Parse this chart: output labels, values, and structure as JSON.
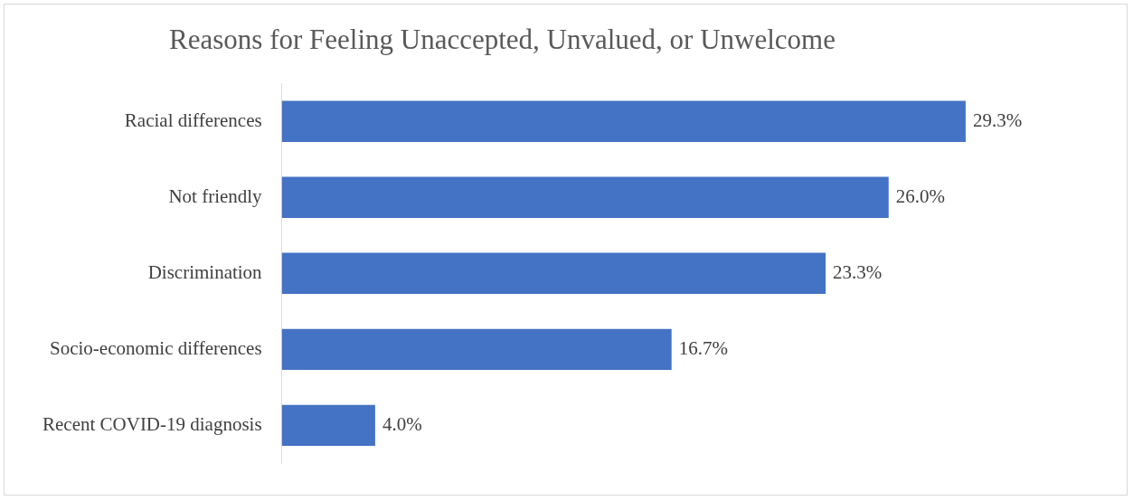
{
  "chart_data": {
    "type": "bar",
    "orientation": "horizontal",
    "title": "Reasons for Feeling Unaccepted, Unvalued, or Unwelcome",
    "categories": [
      "Racial differences",
      "Not friendly",
      "Discrimination",
      "Socio-economic differences",
      "Recent COVID-19 diagnosis"
    ],
    "values": [
      29.3,
      26.0,
      23.3,
      16.7,
      4.0
    ],
    "value_labels": [
      "29.3%",
      "26.0%",
      "23.3%",
      "16.7%",
      "4.0%"
    ],
    "color": "#4472c4",
    "legend": false
  }
}
